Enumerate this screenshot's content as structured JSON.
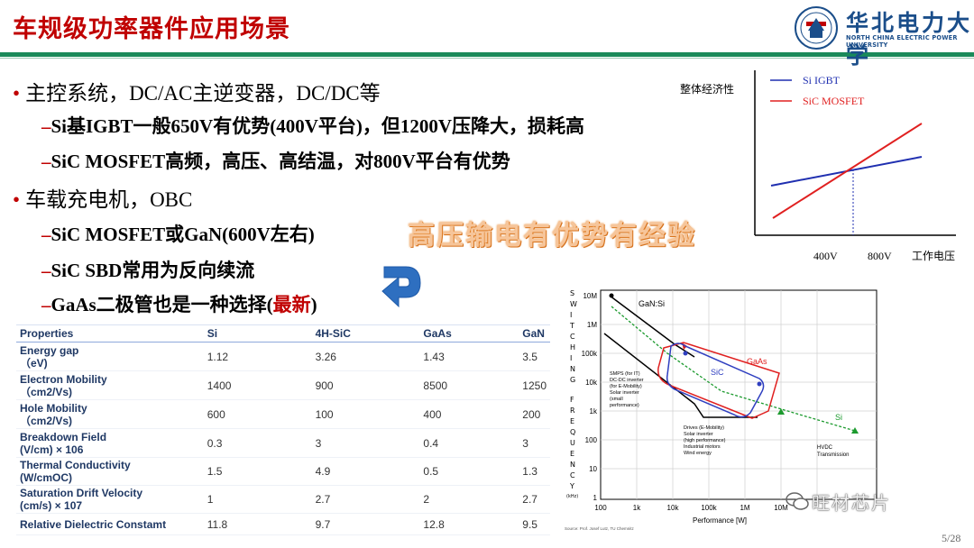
{
  "title": "车规级功率器件应用场景",
  "university": {
    "name_cn": "华北电力大学",
    "name_en": "NORTH CHINA ELECTRIC POWER UNIVERSITY"
  },
  "bullets": [
    {
      "level": 1,
      "text": "主控系统，DC/AC主逆变器，DC/DC等"
    },
    {
      "level": 2,
      "text": "Si基IGBT一般650V有优势(400V平台)，但1200V压降大，损耗高"
    },
    {
      "level": 2,
      "text": "SiC MOSFET高频，高压、高结温，对800V平台有优势"
    },
    {
      "level": 1,
      "text": "车载充电机，OBC"
    },
    {
      "level": 2,
      "text": "SiC MOSFET或GaN(600V左右)"
    },
    {
      "level": 2,
      "text": "SiC SBD常用为反向续流"
    },
    {
      "level": 2,
      "text_before": "GaAs二极管也是一种选择(",
      "text_highlight": "最新",
      "text_after": ")"
    }
  ],
  "overlay_text": "高压输电有优势有经验",
  "table": {
    "headers": [
      "Properties",
      "Si",
      "4H-SiC",
      "GaAs",
      "GaN"
    ],
    "rows": [
      {
        "name": "Energy gap",
        "unit": "（eV)",
        "values": [
          "1.12",
          "3.26",
          "1.43",
          "3.5"
        ]
      },
      {
        "name": "Electron Mobility",
        "unit": "（cm2/Vs)",
        "values": [
          "1400",
          "900",
          "8500",
          "1250"
        ]
      },
      {
        "name": "Hole Mobility",
        "unit": "（cm2/Vs)",
        "values": [
          "600",
          "100",
          "400",
          "200"
        ]
      },
      {
        "name": "Breakdown Field",
        "unit": "(V/cm) × 106",
        "values": [
          "0.3",
          "3",
          "0.4",
          "3"
        ]
      },
      {
        "name": "Thermal Conductivity",
        "unit": "(W/cmOC)",
        "values": [
          "1.5",
          "4.9",
          "0.5",
          "1.3"
        ]
      },
      {
        "name": "Saturation Drift Velocity",
        "unit": "(cm/s) × 107",
        "values": [
          "1",
          "2.7",
          "2",
          "2.7"
        ]
      },
      {
        "name": "Relative Dielectric Constamt",
        "unit": "",
        "values": [
          "11.8",
          "9.7",
          "12.8",
          "9.5"
        ]
      }
    ]
  },
  "cost_chart": {
    "ylabel": "整体经济性",
    "xlabel": "工作电压",
    "ticks": [
      "400V",
      "800V"
    ],
    "legend": [
      {
        "name": "Si IGBT",
        "color": "#1f2fb0"
      },
      {
        "name": "SiC MOSFET",
        "color": "#e02020"
      }
    ]
  },
  "switch_chart": {
    "ylabel": "SWITCHING FREQUENCY",
    "yunit": "(kHz)",
    "xlabel": "Performance [W]",
    "yticks": [
      "10M",
      "1M",
      "100k",
      "10k",
      "1k",
      "100",
      "10",
      "1"
    ],
    "xticks": [
      "100",
      "1k",
      "10k",
      "100k",
      "1M",
      "10M"
    ],
    "labels": {
      "gan_si": "GaN:Si",
      "gaas": "GaAs",
      "sic": "SiC",
      "si": "Si",
      "smps": [
        "SMPS (for IT)",
        "DC-DC inverter",
        "(for E-Mobility)",
        "Solar inverter",
        "(small",
        "performance)"
      ],
      "drives": [
        "Drives (E-Mobility)",
        "Solar inverter",
        "(high performance)",
        "Industrial motors",
        "Wind energy"
      ],
      "hvdc": [
        "HVDC",
        "Transmission"
      ]
    },
    "source": "Source: Prof. Josef Lutz, TU Chemnitz"
  },
  "watermark": "旺材芯片",
  "page_number": "5/28",
  "colors": {
    "title": "#c00000",
    "rule": "#1a8a5a",
    "accent_blue": "#1b4e8a"
  }
}
